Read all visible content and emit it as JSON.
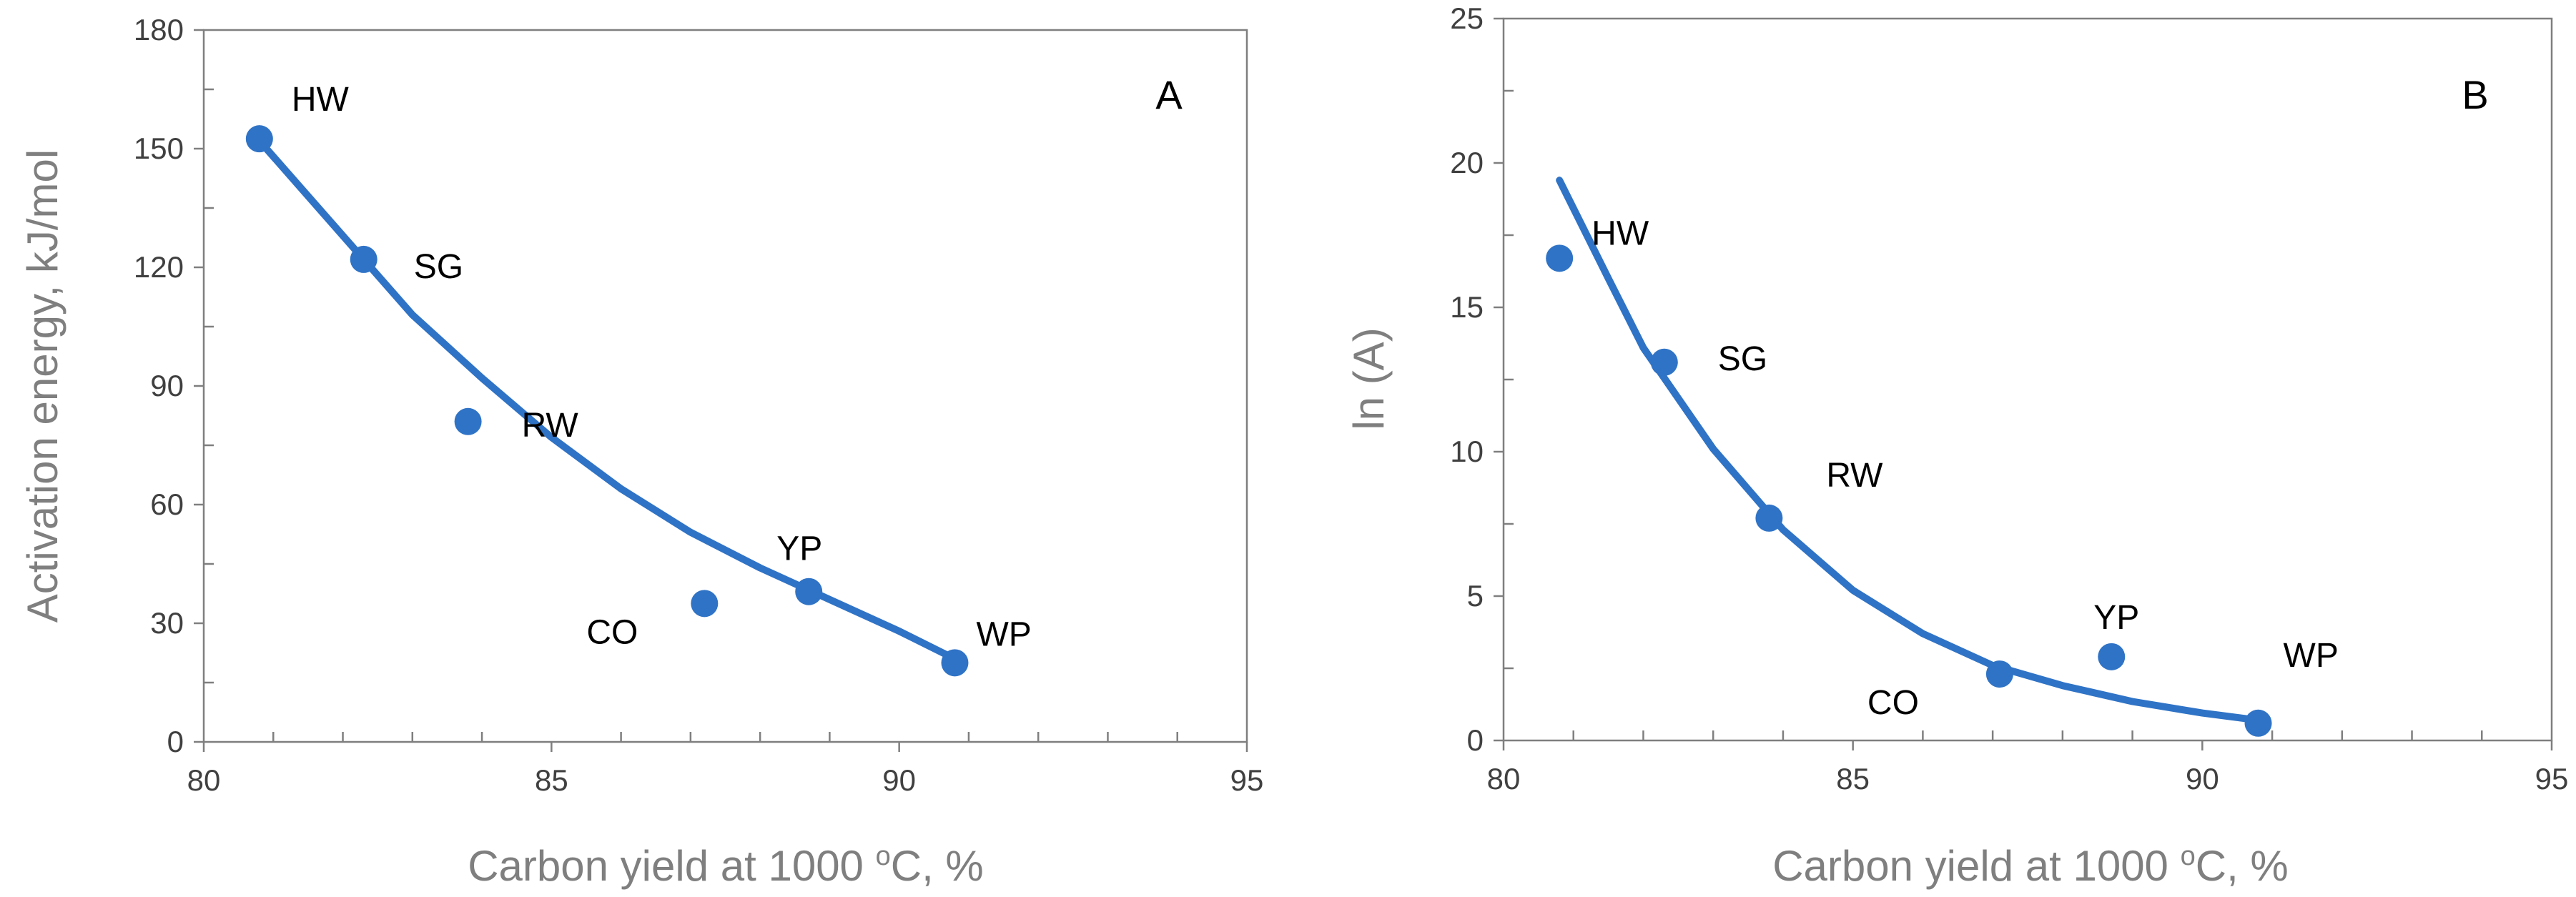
{
  "colors": {
    "series": "#2f73c6",
    "axis": "#7f7f7f",
    "tick_text": "#404040",
    "title_text": "#7f7f7f"
  },
  "chart_data": [
    {
      "type": "scatter",
      "panel": "A",
      "xlabel_main": "Carbon yield at 1000 ",
      "xlabel_sup": "o",
      "xlabel_end": "C,  %",
      "ylabel": "Activation energy, kJ/mol",
      "xlim": [
        80,
        95
      ],
      "ylim": [
        0,
        180
      ],
      "xticks": [
        "80",
        "85",
        "90",
        "95"
      ],
      "yticks": [
        "0",
        "30",
        "60",
        "90",
        "120",
        "150",
        "180"
      ],
      "grid": false,
      "points": [
        {
          "label": "HW",
          "x": 80.8,
          "y": 152.5
        },
        {
          "label": "SG",
          "x": 82.3,
          "y": 122
        },
        {
          "label": "RW",
          "x": 83.8,
          "y": 81
        },
        {
          "label": "CO",
          "x": 87.2,
          "y": 35
        },
        {
          "label": "YP",
          "x": 88.7,
          "y": 38
        },
        {
          "label": "WP",
          "x": 90.8,
          "y": 20
        }
      ],
      "trendline": {
        "type": "exponential fit",
        "x": [
          80.8,
          82,
          83,
          84,
          85,
          86,
          87,
          88,
          89,
          90,
          90.8
        ],
        "y": [
          152,
          128,
          108,
          92,
          77,
          64,
          53,
          44,
          36,
          28,
          21
        ]
      }
    },
    {
      "type": "scatter",
      "panel": "B",
      "xlabel_main": "Carbon yield at 1000 ",
      "xlabel_sup": "o",
      "xlabel_end": "C, %",
      "ylabel": "ln (A)",
      "xlim": [
        80,
        95
      ],
      "ylim": [
        0,
        25
      ],
      "xticks": [
        "80",
        "85",
        "90",
        "95"
      ],
      "yticks": [
        "0",
        "5",
        "10",
        "15",
        "20",
        "25"
      ],
      "grid": false,
      "points": [
        {
          "label": "HW",
          "x": 80.8,
          "y": 16.7
        },
        {
          "label": "SG",
          "x": 82.3,
          "y": 13.1
        },
        {
          "label": "RW",
          "x": 83.8,
          "y": 7.7
        },
        {
          "label": "CO",
          "x": 87.1,
          "y": 2.3
        },
        {
          "label": "YP",
          "x": 88.7,
          "y": 2.9
        },
        {
          "label": "WP",
          "x": 90.8,
          "y": 0.6
        }
      ],
      "trendline": {
        "type": "exponential fit",
        "x": [
          80.8,
          81.5,
          82,
          83,
          84,
          85,
          86,
          87,
          88,
          89,
          90,
          90.8
        ],
        "y": [
          19.4,
          16.0,
          13.6,
          10.1,
          7.3,
          5.2,
          3.7,
          2.6,
          1.9,
          1.35,
          0.95,
          0.7
        ]
      }
    }
  ]
}
